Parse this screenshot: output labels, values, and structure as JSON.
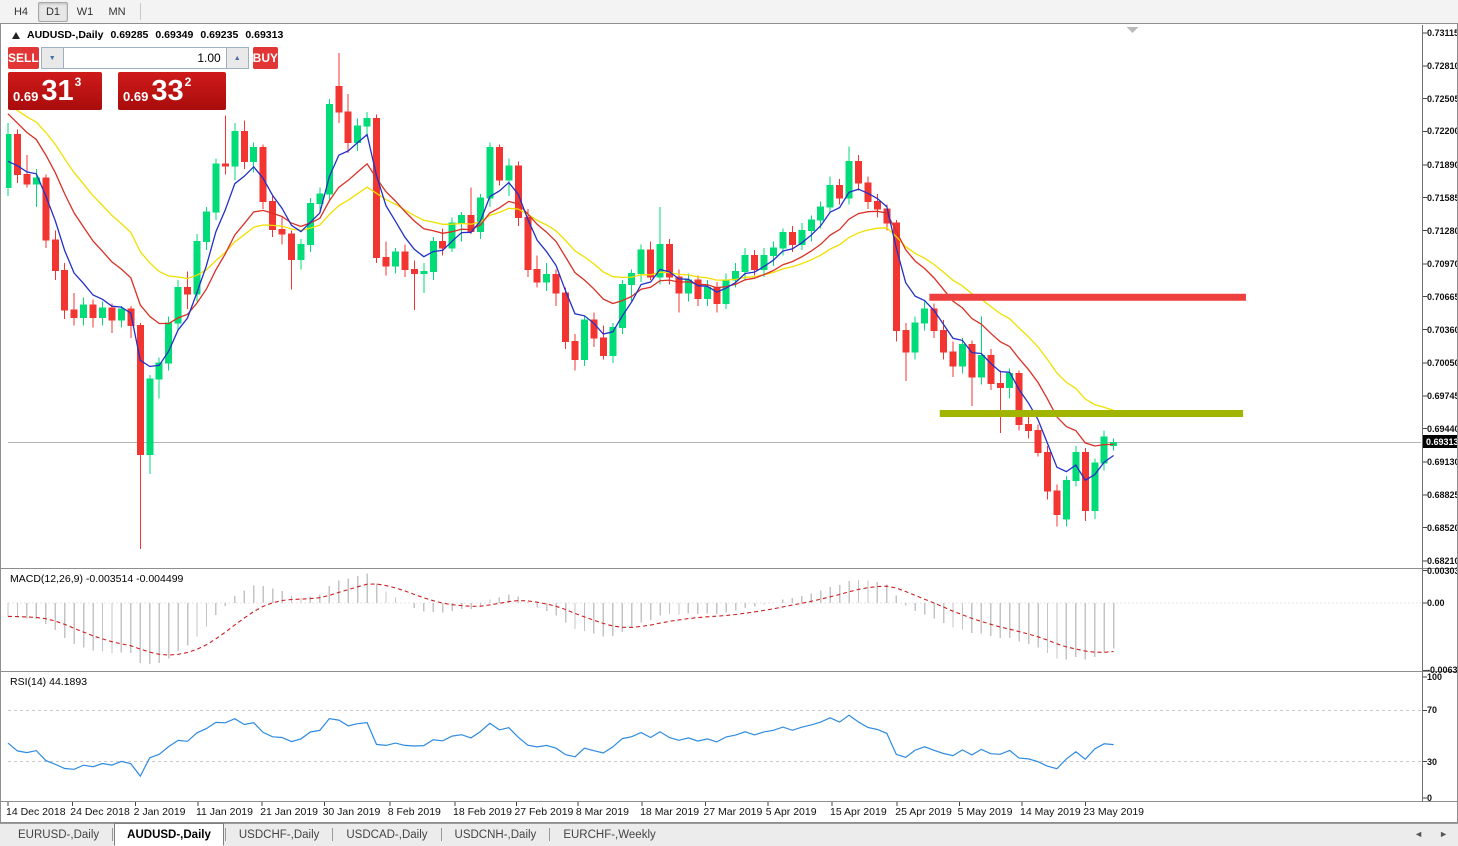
{
  "toolbar": {
    "timeframes": [
      "H4",
      "D1",
      "W1",
      "MN"
    ],
    "active": "D1"
  },
  "chart_header": {
    "symbol": "AUDUSD-,Daily",
    "open": "0.69285",
    "high": "0.69349",
    "low": "0.69235",
    "close": "0.69313"
  },
  "trade_widget": {
    "sell_label": "SELL",
    "buy_label": "BUY",
    "volume": "1.00",
    "sell_price": {
      "frac": "0.69",
      "big": "31",
      "sup": "3"
    },
    "buy_price": {
      "frac": "0.69",
      "big": "33",
      "sup": "2"
    }
  },
  "indicator_labels": {
    "macd": {
      "name": "MACD(12,26,9)",
      "value_main": "-0.003514",
      "value_signal": "-0.004499"
    },
    "rsi": {
      "name": "RSI(14)",
      "value": "44.1893"
    }
  },
  "tabs": {
    "items": [
      "EURUSD-,Daily",
      "AUDUSD-,Daily",
      "USDCHF-,Daily",
      "USDCAD-,Daily",
      "USDCNH-,Daily",
      "EURCHF-,Weekly"
    ],
    "active_index": 1,
    "scroll_left": "◄",
    "scroll_right": "►"
  },
  "colors": {
    "bull": "#00dc78",
    "bear": "#f23530",
    "ma_fast": "#2230c8",
    "ma_mid": "#d93025",
    "ma_slow": "#f0e000",
    "macd_hist": "#c4c4c4",
    "macd_signal": "#cc2020",
    "rsi": "#2f8be0",
    "band_resistance": "#ef4040",
    "band_support": "#a0b400",
    "price_line": "#b4b4b4",
    "level_dash": "#c8c8c8"
  },
  "chart_data": {
    "type": "candlestick",
    "symbol": "AUDUSD-",
    "timeframe": "Daily",
    "y_axis": {
      "labels": [
        "0.73115",
        "0.72810",
        "0.72505",
        "0.72200",
        "0.71890",
        "0.71585",
        "0.71280",
        "0.70970",
        "0.70665",
        "0.70360",
        "0.70050",
        "0.69745",
        "0.69440",
        "0.69130",
        "0.68825",
        "0.68520",
        "0.68210"
      ],
      "top_value": 0.73115,
      "bottom_value": 0.6821
    },
    "current_price": 0.69313,
    "current_price_label": "0.69313",
    "x_axis": {
      "labels": [
        "14 Dec 2018",
        "24 Dec 2018",
        "2 Jan 2019",
        "11 Jan 2019",
        "21 Jan 2019",
        "30 Jan 2019",
        "8 Feb 2019",
        "18 Feb 2019",
        "27 Feb 2019",
        "8 Mar 2019",
        "18 Mar 2019",
        "27 Mar 2019",
        "5 Apr 2019",
        "15 Apr 2019",
        "25 Apr 2019",
        "5 May 2019",
        "14 May 2019",
        "23 May 2019"
      ],
      "candle_indices": [
        0,
        6.8,
        13.5,
        20.1,
        26.9,
        33.5,
        40.4,
        47.3,
        53.8,
        60.3,
        67.1,
        73.8,
        80.4,
        87.2,
        94.1,
        100.7,
        107.3,
        114
      ]
    },
    "candles": [
      [
        0.7168,
        0.7228,
        0.716,
        0.7217
      ],
      [
        0.7217,
        0.7222,
        0.7172,
        0.718
      ],
      [
        0.718,
        0.7198,
        0.7168,
        0.7171
      ],
      [
        0.7171,
        0.7185,
        0.715,
        0.7177
      ],
      [
        0.7177,
        0.718,
        0.7112,
        0.7119
      ],
      [
        0.7119,
        0.7128,
        0.7082,
        0.7091
      ],
      [
        0.7091,
        0.7098,
        0.7046,
        0.7054
      ],
      [
        0.7054,
        0.707,
        0.704,
        0.7047
      ],
      [
        0.7047,
        0.7066,
        0.704,
        0.7059
      ],
      [
        0.7059,
        0.7064,
        0.7038,
        0.7047
      ],
      [
        0.7047,
        0.7062,
        0.704,
        0.7056
      ],
      [
        0.7056,
        0.706,
        0.7033,
        0.7045
      ],
      [
        0.7045,
        0.7058,
        0.7038,
        0.7055
      ],
      [
        0.7055,
        0.7058,
        0.7028,
        0.704
      ],
      [
        0.704,
        0.7042,
        0.6832,
        0.692
      ],
      [
        0.692,
        0.6994,
        0.6902,
        0.699
      ],
      [
        0.699,
        0.701,
        0.6972,
        0.7005
      ],
      [
        0.7005,
        0.7048,
        0.6998,
        0.7042
      ],
      [
        0.7042,
        0.7082,
        0.7035,
        0.7075
      ],
      [
        0.7075,
        0.709,
        0.7055,
        0.7069
      ],
      [
        0.7069,
        0.7125,
        0.7062,
        0.7118
      ],
      [
        0.7118,
        0.715,
        0.711,
        0.7145
      ],
      [
        0.7145,
        0.7195,
        0.7138,
        0.719
      ],
      [
        0.719,
        0.7235,
        0.718,
        0.7188
      ],
      [
        0.7188,
        0.7228,
        0.7175,
        0.722
      ],
      [
        0.722,
        0.723,
        0.7185,
        0.7192
      ],
      [
        0.7192,
        0.721,
        0.7182,
        0.7205
      ],
      [
        0.7205,
        0.7208,
        0.7148,
        0.7155
      ],
      [
        0.7155,
        0.716,
        0.7122,
        0.7129
      ],
      [
        0.7129,
        0.714,
        0.7115,
        0.7125
      ],
      [
        0.7125,
        0.7128,
        0.7073,
        0.7101
      ],
      [
        0.7101,
        0.712,
        0.7092,
        0.7115
      ],
      [
        0.7115,
        0.7158,
        0.7108,
        0.7153
      ],
      [
        0.7153,
        0.7168,
        0.7145,
        0.7162
      ],
      [
        0.7162,
        0.725,
        0.7155,
        0.7245
      ],
      [
        0.7262,
        0.7293,
        0.7228,
        0.7238
      ],
      [
        0.7238,
        0.7255,
        0.72,
        0.721
      ],
      [
        0.721,
        0.7232,
        0.7202,
        0.7225
      ],
      [
        0.7225,
        0.7238,
        0.7215,
        0.7232
      ],
      [
        0.7232,
        0.7236,
        0.7098,
        0.7103
      ],
      [
        0.7103,
        0.7118,
        0.7086,
        0.7095
      ],
      [
        0.7095,
        0.7112,
        0.7088,
        0.7108
      ],
      [
        0.7108,
        0.7115,
        0.7085,
        0.7092
      ],
      [
        0.7092,
        0.71,
        0.7054,
        0.7088
      ],
      [
        0.7088,
        0.7098,
        0.707,
        0.709
      ],
      [
        0.709,
        0.7122,
        0.7082,
        0.7118
      ],
      [
        0.7118,
        0.713,
        0.7105,
        0.7112
      ],
      [
        0.7112,
        0.714,
        0.7108,
        0.7135
      ],
      [
        0.7135,
        0.7145,
        0.7118,
        0.7142
      ],
      [
        0.7142,
        0.7168,
        0.7125,
        0.7127
      ],
      [
        0.7127,
        0.7162,
        0.712,
        0.7158
      ],
      [
        0.7158,
        0.721,
        0.715,
        0.7205
      ],
      [
        0.7205,
        0.7208,
        0.717,
        0.7175
      ],
      [
        0.7175,
        0.7195,
        0.716,
        0.7188
      ],
      [
        0.7188,
        0.7192,
        0.7132,
        0.714
      ],
      [
        0.714,
        0.7148,
        0.7085,
        0.7092
      ],
      [
        0.7092,
        0.7105,
        0.7075,
        0.708
      ],
      [
        0.708,
        0.7098,
        0.7072,
        0.7087
      ],
      [
        0.7087,
        0.7092,
        0.7058,
        0.707
      ],
      [
        0.707,
        0.7075,
        0.7018,
        0.7025
      ],
      [
        0.7025,
        0.7032,
        0.6998,
        0.7008
      ],
      [
        0.7008,
        0.7048,
        0.7002,
        0.7045
      ],
      [
        0.7045,
        0.7052,
        0.702,
        0.7028
      ],
      [
        0.7028,
        0.704,
        0.7008,
        0.7012
      ],
      [
        0.7012,
        0.7042,
        0.7005,
        0.7038
      ],
      [
        0.7038,
        0.7082,
        0.7032,
        0.7078
      ],
      [
        0.7078,
        0.7092,
        0.7062,
        0.7088
      ],
      [
        0.7088,
        0.7115,
        0.708,
        0.711
      ],
      [
        0.711,
        0.7118,
        0.7082,
        0.7085
      ],
      [
        0.7085,
        0.715,
        0.7078,
        0.7115
      ],
      [
        0.7115,
        0.712,
        0.7078,
        0.7085
      ],
      [
        0.7085,
        0.7092,
        0.7052,
        0.707
      ],
      [
        0.707,
        0.7088,
        0.7062,
        0.7082
      ],
      [
        0.7082,
        0.7086,
        0.7058,
        0.7065
      ],
      [
        0.7065,
        0.7082,
        0.7058,
        0.7075
      ],
      [
        0.7075,
        0.708,
        0.7052,
        0.706
      ],
      [
        0.706,
        0.7088,
        0.7055,
        0.7082
      ],
      [
        0.7082,
        0.7098,
        0.7075,
        0.709
      ],
      [
        0.709,
        0.7112,
        0.7082,
        0.7105
      ],
      [
        0.7105,
        0.711,
        0.7086,
        0.7092
      ],
      [
        0.7092,
        0.7112,
        0.7085,
        0.7105
      ],
      [
        0.7105,
        0.7118,
        0.7095,
        0.7112
      ],
      [
        0.7112,
        0.713,
        0.7105,
        0.7126
      ],
      [
        0.7126,
        0.7132,
        0.7108,
        0.7115
      ],
      [
        0.7115,
        0.7135,
        0.711,
        0.7128
      ],
      [
        0.7128,
        0.7142,
        0.7118,
        0.7138
      ],
      [
        0.7138,
        0.7155,
        0.713,
        0.715
      ],
      [
        0.715,
        0.7178,
        0.7145,
        0.717
      ],
      [
        0.717,
        0.7176,
        0.7152,
        0.7158
      ],
      [
        0.7158,
        0.7206,
        0.7152,
        0.7192
      ],
      [
        0.7192,
        0.7198,
        0.7165,
        0.7172
      ],
      [
        0.7172,
        0.7178,
        0.7148,
        0.7155
      ],
      [
        0.7155,
        0.7162,
        0.714,
        0.7148
      ],
      [
        0.7148,
        0.7152,
        0.7128,
        0.7135
      ],
      [
        0.7135,
        0.7138,
        0.7025,
        0.7035
      ],
      [
        0.7035,
        0.7042,
        0.6988,
        0.7015
      ],
      [
        0.7015,
        0.7048,
        0.7008,
        0.7042
      ],
      [
        0.7042,
        0.7062,
        0.7035,
        0.7055
      ],
      [
        0.7055,
        0.706,
        0.7028,
        0.7035
      ],
      [
        0.7035,
        0.7045,
        0.7008,
        0.7015
      ],
      [
        0.7015,
        0.7025,
        0.6992,
        0.7002
      ],
      [
        0.7002,
        0.7028,
        0.6995,
        0.7022
      ],
      [
        0.7022,
        0.7026,
        0.6965,
        0.6992
      ],
      [
        0.6992,
        0.7048,
        0.6985,
        0.7012
      ],
      [
        0.7012,
        0.7018,
        0.698,
        0.6986
      ],
      [
        0.6986,
        0.6998,
        0.694,
        0.6982
      ],
      [
        0.6982,
        0.7,
        0.6972,
        0.6995
      ],
      [
        0.6995,
        0.6998,
        0.6942,
        0.6948
      ],
      [
        0.6948,
        0.6956,
        0.6935,
        0.6942
      ],
      [
        0.6942,
        0.6948,
        0.6918,
        0.6922
      ],
      [
        0.6922,
        0.6928,
        0.6878,
        0.6886
      ],
      [
        0.6886,
        0.6892,
        0.6853,
        0.6864
      ],
      [
        0.686,
        0.69,
        0.6853,
        0.6896
      ],
      [
        0.6896,
        0.6928,
        0.689,
        0.6922
      ],
      [
        0.6922,
        0.6926,
        0.6858,
        0.6868
      ],
      [
        0.6868,
        0.6916,
        0.686,
        0.6912
      ],
      [
        0.6912,
        0.6942,
        0.6905,
        0.6936
      ],
      [
        0.69285,
        0.69349,
        0.69235,
        0.69313
      ]
    ],
    "moving_averages": [
      {
        "name": "fast-ema",
        "period": 5,
        "seed": 0.718,
        "color_key": "ma_fast"
      },
      {
        "name": "mid-ema",
        "period": 12,
        "seed": 0.724,
        "color_key": "ma_mid"
      },
      {
        "name": "slow-ema",
        "period": 22,
        "seed": 0.7248,
        "color_key": "ma_slow"
      }
    ],
    "macd": {
      "fast": 12,
      "slow": 26,
      "signal": 9,
      "seed_fast": 0.72,
      "seed_slow": 0.7215,
      "axis_labels": [
        "0.003035",
        "0.00",
        "-0.00631"
      ],
      "axis_values": [
        0.003035,
        0,
        -0.00631
      ]
    },
    "rsi": {
      "period": 14,
      "seed_gain": 0.0008,
      "seed_loss": 0.001,
      "levels": [
        70,
        30
      ],
      "axis_labels": [
        "100",
        "70",
        "30",
        "0"
      ],
      "axis_values": [
        100,
        70,
        30,
        0
      ]
    },
    "horizontal_bands": [
      {
        "name": "resistance",
        "price": 0.7066,
        "i_start": 97.5,
        "i_end": 131.0,
        "color_key": "band_resistance",
        "thickness": 7
      },
      {
        "name": "support",
        "price": 0.6958,
        "i_start": 98.6,
        "i_end": 130.7,
        "color_key": "band_support",
        "thickness": 7
      }
    ],
    "shift_marker_index": 119
  }
}
